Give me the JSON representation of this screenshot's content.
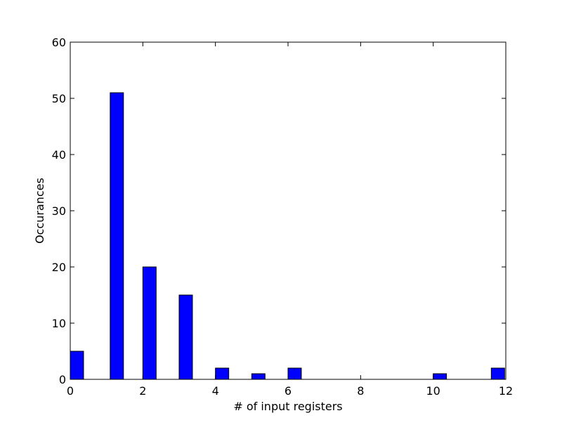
{
  "chart_data": {
    "type": "bar",
    "xlabel": "# of input registers",
    "ylabel": "Occurances",
    "xlim": [
      0,
      12
    ],
    "ylim": [
      0,
      60
    ],
    "x_ticks": [
      0,
      2,
      4,
      6,
      8,
      10,
      12
    ],
    "y_ticks": [
      0,
      10,
      20,
      30,
      40,
      50,
      60
    ],
    "bin_width": 0.3667,
    "bar_color": "#0000ff",
    "bars": [
      {
        "x": 0.0,
        "value": 5
      },
      {
        "x": 1.1,
        "value": 51
      },
      {
        "x": 2.0,
        "value": 20
      },
      {
        "x": 3.0,
        "value": 15
      },
      {
        "x": 4.0,
        "value": 2
      },
      {
        "x": 5.0,
        "value": 1
      },
      {
        "x": 6.0,
        "value": 2
      },
      {
        "x": 10.0,
        "value": 1
      },
      {
        "x": 11.6,
        "value": 2
      }
    ],
    "grid": false,
    "legend": "none"
  }
}
